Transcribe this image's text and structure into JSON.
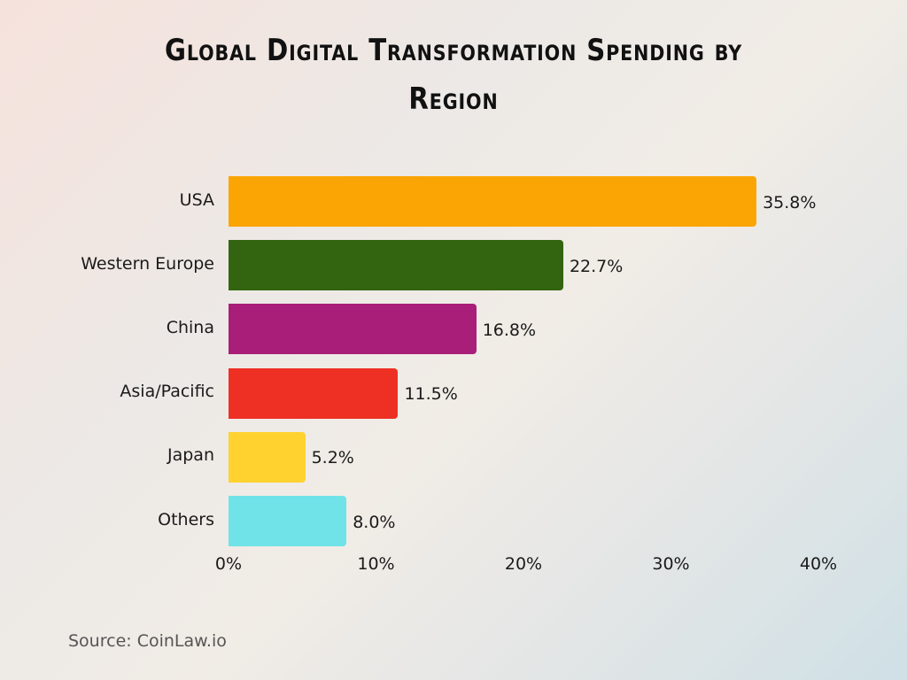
{
  "chart_data": {
    "type": "bar",
    "orientation": "horizontal",
    "title": "Global Digital Transformation Spending by Region",
    "categories": [
      "USA",
      "Western Europe",
      "China",
      "Asia/Pacific",
      "Japan",
      "Others"
    ],
    "values": [
      35.8,
      22.7,
      16.8,
      11.5,
      5.2,
      8.0
    ],
    "value_labels": [
      "35.8%",
      "22.7%",
      "16.8%",
      "11.5%",
      "5.2%",
      "8.0%"
    ],
    "colors": [
      "#FBA504",
      "#336410",
      "#A91E78",
      "#EE3024",
      "#FFD230",
      "#6FE3E8"
    ],
    "xlim": [
      0,
      40
    ],
    "xticks": [
      0,
      10,
      20,
      30,
      40
    ],
    "xtick_labels": [
      "0%",
      "10%",
      "20%",
      "30%",
      "40%"
    ],
    "grid": false,
    "xlabel": "",
    "ylabel": ""
  },
  "source": "Source: CoinLaw.io"
}
